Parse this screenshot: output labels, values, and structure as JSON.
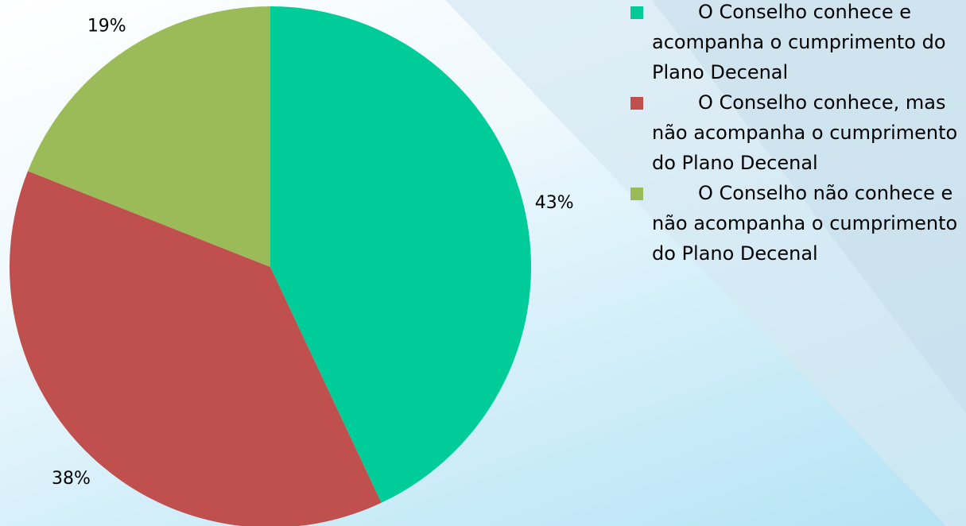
{
  "chart_data": {
    "type": "pie",
    "categories": [
      "O Conselho conhece e acompanha o cumprimento do Plano Decenal",
      "O Conselho conhece, mas não acompanha o cumprimento do Plano Decenal",
      "O Conselho não conhece e não acompanha o cumprimento do Plano Decenal"
    ],
    "values": [
      43,
      38,
      19
    ],
    "value_labels": [
      "43%",
      "38%",
      "19%"
    ],
    "colors": [
      "#00cc99",
      "#c0504d",
      "#9bbb59"
    ],
    "legend": "right"
  }
}
